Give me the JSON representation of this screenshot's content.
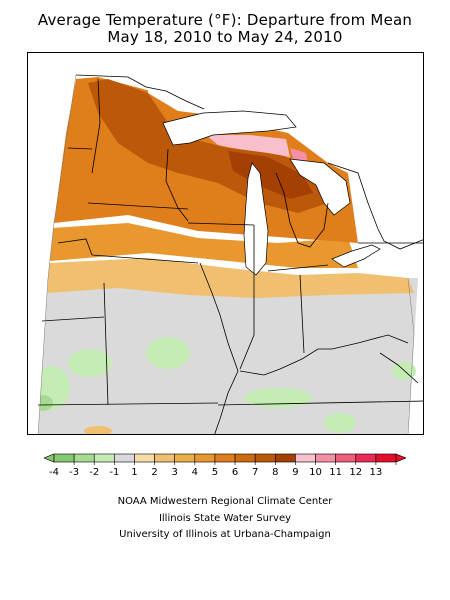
{
  "title": {
    "line1": "Average Temperature (°F): Departure from Mean",
    "line2": "May 18, 2010 to May 24, 2010"
  },
  "legend": {
    "labels": [
      "-4",
      "-3",
      "-2",
      "-1",
      "1",
      "2",
      "3",
      "4",
      "5",
      "6",
      "7",
      "8",
      "9",
      "10",
      "11",
      "12",
      "13"
    ],
    "colors": [
      "#84c870",
      "#a6dc92",
      "#c6ecb6",
      "#dadada",
      "#f6dca6",
      "#f0c070",
      "#eab048",
      "#e8982e",
      "#e07e1c",
      "#d06c10",
      "#bc580a",
      "#a44004",
      "#f8c0cc",
      "#f490a6",
      "#f05c7c",
      "#ea2c54",
      "#e40e2a"
    ]
  },
  "credits": {
    "line1": "NOAA Midwestern Regional Climate Center",
    "line2": "Illinois State Water Survey",
    "line3": "University of Illinois at Urbana-Champaign"
  }
}
